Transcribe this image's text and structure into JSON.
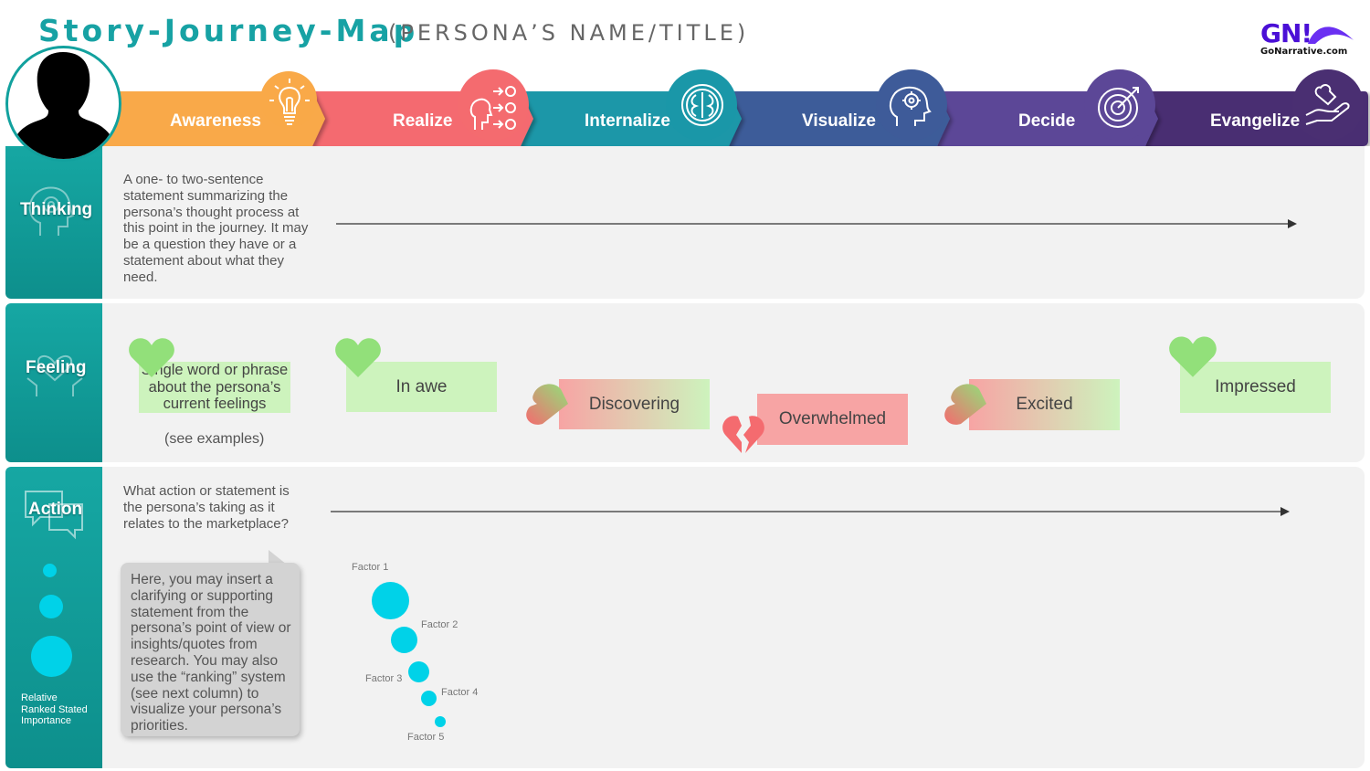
{
  "header": {
    "title": "Story-Journey-Map",
    "subtitle": "(PERSONA’S NAME/TITLE)"
  },
  "logo": {
    "mark": "GN!",
    "site": "GoNarrative.com"
  },
  "stages": [
    {
      "label": "Awareness",
      "icon": "lightbulb-icon",
      "color": "#f9a948"
    },
    {
      "label": "Realize",
      "icon": "ideas-flow-icon",
      "color": "#f46b6f"
    },
    {
      "label": "Internalize",
      "icon": "brain-icon",
      "color": "#1a97a8"
    },
    {
      "label": "Visualize",
      "icon": "head-gears-icon",
      "color": "#3e5b99"
    },
    {
      "label": "Decide",
      "icon": "target-icon",
      "color": "#5c4797"
    },
    {
      "label": "Evangelize",
      "icon": "hand-heart-icon",
      "color": "#4a2f72"
    }
  ],
  "rows": {
    "thinking": {
      "label": "Thinking",
      "text": "A one- to two-sentence statement summarizing the persona’s thought process at this point in the journey. It may be a question they have or a statement about what they need."
    },
    "feeling": {
      "label": "Feeling",
      "note": "(see examples)",
      "items": [
        {
          "text": "Single word or phrase about the persona’s current feelings",
          "heart": "positive"
        },
        {
          "text": "In awe",
          "heart": "positive"
        },
        {
          "text": "Discovering",
          "heart": "mixed"
        },
        {
          "text": "Overwhelmed",
          "heart": "broken"
        },
        {
          "text": "Excited",
          "heart": "mixed"
        },
        {
          "text": "Impressed",
          "heart": "positive"
        }
      ]
    },
    "action": {
      "label": "Action",
      "text": "What action or statement is the persona’s taking as it relates to the marketplace?",
      "callout": "Here, you may insert a clarifying or supporting statement from the persona’s point of view or insights/quotes from research. You may also use the “ranking” system (see next column) to visualize your persona’s priorities.",
      "rank_label": "Relative Ranked Stated Importance",
      "factors": [
        {
          "label": "Factor 1",
          "rank": 1
        },
        {
          "label": "Factor 2",
          "rank": 2
        },
        {
          "label": "Factor 3",
          "rank": 3
        },
        {
          "label": "Factor 4",
          "rank": 4
        },
        {
          "label": "Factor 5",
          "rank": 5
        }
      ]
    }
  }
}
